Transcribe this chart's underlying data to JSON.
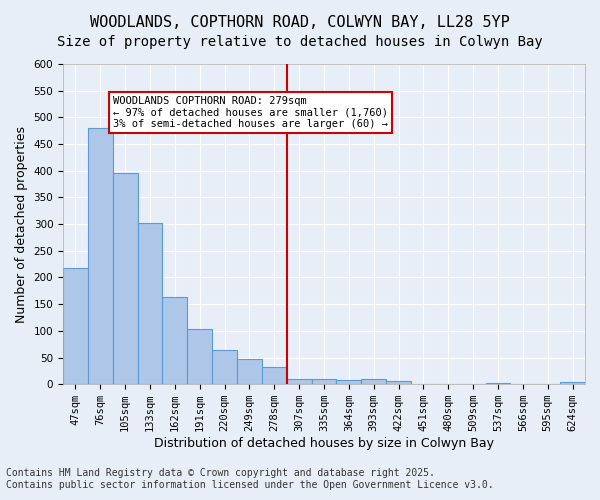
{
  "title_line1": "WOODLANDS, COPTHORN ROAD, COLWYN BAY, LL28 5YP",
  "title_line2": "Size of property relative to detached houses in Colwyn Bay",
  "xlabel": "Distribution of detached houses by size in Colwyn Bay",
  "ylabel": "Number of detached properties",
  "categories": [
    "47sqm",
    "76sqm",
    "105sqm",
    "133sqm",
    "162sqm",
    "191sqm",
    "220sqm",
    "249sqm",
    "278sqm",
    "307sqm",
    "335sqm",
    "364sqm",
    "393sqm",
    "422sqm",
    "451sqm",
    "480sqm",
    "509sqm",
    "537sqm",
    "566sqm",
    "595sqm",
    "624sqm"
  ],
  "values": [
    218,
    480,
    395,
    303,
    163,
    104,
    64,
    47,
    32,
    9,
    9,
    8,
    9,
    6,
    1,
    1,
    0,
    2,
    0,
    0,
    4
  ],
  "bar_color": "#aec6e8",
  "bar_edge_color": "#5b9bd5",
  "bg_color": "#e8eef8",
  "grid_color": "#ffffff",
  "vline_x": 8,
  "vline_color": "#cc0000",
  "annotation_text": "WOODLANDS COPTHORN ROAD: 279sqm\n← 97% of detached houses are smaller (1,760)\n3% of semi-detached houses are larger (60) →",
  "annotation_box_color": "#cc0000",
  "annotation_text_color": "#000000",
  "ylim": [
    0,
    600
  ],
  "yticks": [
    0,
    50,
    100,
    150,
    200,
    250,
    300,
    350,
    400,
    450,
    500,
    550,
    600
  ],
  "footer_line1": "Contains HM Land Registry data © Crown copyright and database right 2025.",
  "footer_line2": "Contains public sector information licensed under the Open Government Licence v3.0.",
  "title_fontsize": 11,
  "subtitle_fontsize": 10,
  "axis_label_fontsize": 9,
  "tick_fontsize": 7.5,
  "annotation_fontsize": 7.5,
  "footer_fontsize": 7
}
